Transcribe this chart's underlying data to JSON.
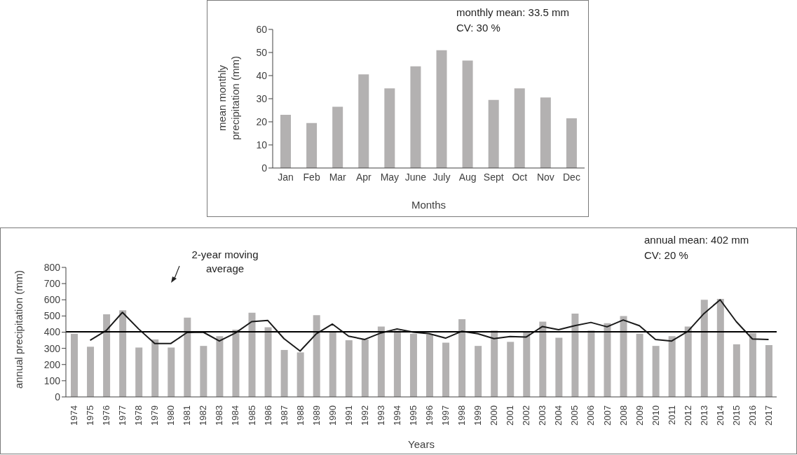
{
  "chart_data": [
    {
      "type": "bar",
      "xlabel": "Months",
      "ylabel": "mean monthly precipitation (mm)",
      "annotations": [
        "monthly mean: 33.5 mm",
        "CV: 30 %"
      ],
      "categories": [
        "Jan",
        "Feb",
        "Mar",
        "Apr",
        "May",
        "June",
        "July",
        "Aug",
        "Sept",
        "Oct",
        "Nov",
        "Dec"
      ],
      "values": [
        23,
        19.5,
        26.5,
        40.5,
        34.5,
        44,
        51,
        46.5,
        29.5,
        34.5,
        30.5,
        21.5
      ],
      "color": "#b3b1b1",
      "ylim": [
        0,
        60
      ],
      "yticks": [
        0,
        10,
        20,
        30,
        40,
        50,
        60
      ]
    },
    {
      "type": "bar",
      "xlabel": "Years",
      "ylabel": "annual precipitation (mm)",
      "annotations": [
        "annual mean: 402 mm",
        "CV: 20 %"
      ],
      "categories": [
        "1974",
        "1975",
        "1976",
        "1977",
        "1978",
        "1979",
        "1980",
        "1981",
        "1982",
        "1983",
        "1984",
        "1985",
        "1986",
        "1987",
        "1988",
        "1989",
        "1990",
        "1991",
        "1992",
        "1993",
        "1994",
        "1995",
        "1996",
        "1997",
        "1998",
        "1999",
        "2000",
        "2001",
        "2002",
        "2003",
        "2004",
        "2005",
        "2006",
        "2007",
        "2008",
        "2009",
        "2010",
        "2011",
        "2012",
        "2013",
        "2014",
        "2015",
        "2016",
        "2017"
      ],
      "series": [
        {
          "type": "bar",
          "color": "#b3b1b1",
          "values": [
            390,
            310,
            510,
            535,
            305,
            355,
            305,
            490,
            315,
            375,
            415,
            520,
            430,
            290,
            275,
            505,
            405,
            350,
            355,
            435,
            410,
            390,
            385,
            335,
            480,
            315,
            410,
            340,
            405,
            465,
            365,
            515,
            410,
            455,
            500,
            390,
            315,
            375,
            435,
            600,
            605,
            325,
            395,
            320
          ]
        },
        {
          "type": "line",
          "name": "2-year moving average",
          "color": "#1a1a1a",
          "values": [
            null,
            350,
            410,
            522,
            420,
            330,
            330,
            398,
            400,
            345,
            395,
            465,
            472,
            360,
            283,
            390,
            450,
            375,
            355,
            395,
            420,
            400,
            390,
            363,
            405,
            390,
            360,
            373,
            370,
            435,
            415,
            440,
            460,
            433,
            475,
            440,
            355,
            345,
            405,
            515,
            600,
            465,
            358,
            355
          ]
        }
      ],
      "marker": "none",
      "ref_lines": [
        {
          "axis": "y",
          "value": 402,
          "color": "#000000"
        }
      ],
      "ylim": [
        0,
        800
      ],
      "yticks": [
        0,
        100,
        200,
        300,
        400,
        500,
        600,
        700,
        800
      ]
    }
  ]
}
